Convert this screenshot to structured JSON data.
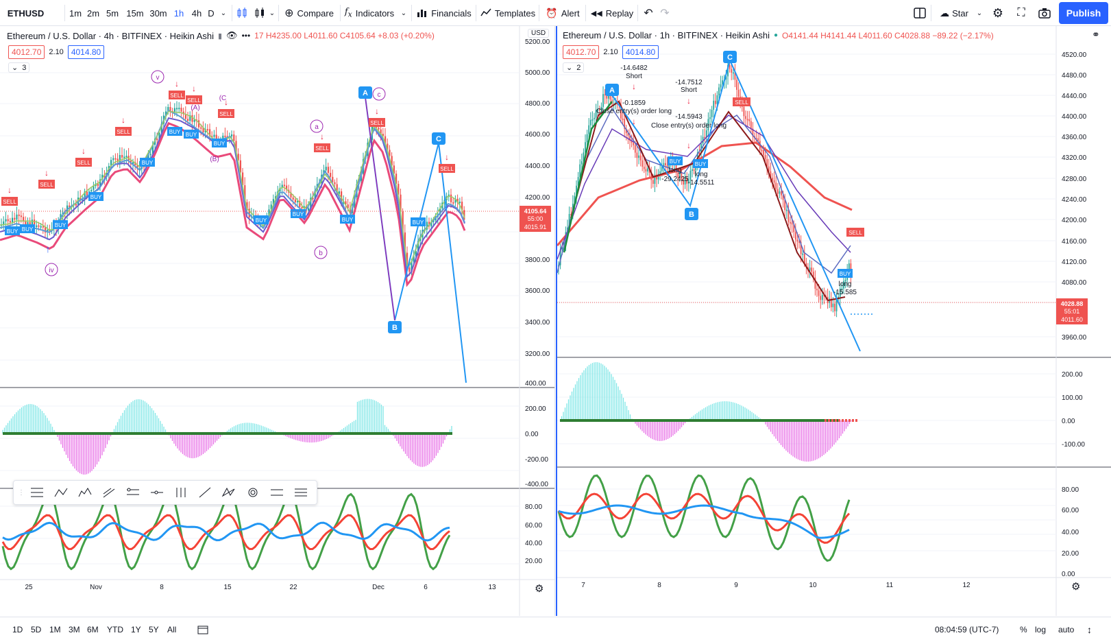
{
  "toolbar": {
    "symbol": "ETHUSD",
    "intervals": [
      "1m",
      "2m",
      "5m",
      "15m",
      "30m",
      "1h",
      "4h",
      "D"
    ],
    "active_interval": "1h",
    "compare": "Compare",
    "indicators": "Indicators",
    "financials": "Financials",
    "templates": "Templates",
    "alert": "Alert",
    "replay": "Replay",
    "star": "Star",
    "publish": "Publish"
  },
  "left": {
    "title": "Ethereum / U.S. Dollar · 4h · BITFINEX · Heikin Ashi",
    "ohlc": "17 H4235.00 L4011.60 C4105.64 +8.03 (+0.20%)",
    "bid": "4012.70",
    "spread": "2.10",
    "ask": "4014.80",
    "collapse": "3",
    "currency": "USD",
    "price_ticks": [
      "5200.00",
      "5000.00",
      "4800.00",
      "4600.00",
      "4400.00",
      "4200.00",
      "4000.00",
      "3800.00",
      "3600.00",
      "3400.00",
      "3200.00"
    ],
    "osc_ticks": [
      "400.00",
      "200.00",
      "0.00",
      "-200.00",
      "-400.00"
    ],
    "rsi_ticks": [
      "80.00",
      "60.00",
      "40.00",
      "20.00"
    ],
    "last_price": "4105.64",
    "countdown": "55:00",
    "last_low": "4015.91",
    "dates": [
      "25",
      "Nov",
      "8",
      "15",
      "22",
      "Dec",
      "6",
      "13"
    ],
    "wave_labels": [
      "v",
      "iv",
      "(C",
      "(A)",
      "(B)",
      "a",
      "b",
      "c"
    ],
    "pattern_points": [
      "A",
      "B",
      "C"
    ]
  },
  "right": {
    "title": "Ethereum / U.S. Dollar · 1h · BITFINEX · Heikin Ashi",
    "ohlc": "O4141.44 H4141.44 L4011.60 C4028.88 −89.22 (−2.17%)",
    "bid": "4012.70",
    "spread": "2.10",
    "ask": "4014.80",
    "collapse": "2",
    "price_ticks": [
      "4520.00",
      "4480.00",
      "4440.00",
      "4400.00",
      "4360.00",
      "4320.00",
      "4280.00",
      "4240.00",
      "4200.00",
      "4160.00",
      "4120.00",
      "4080.00",
      "4040.00",
      "3960.00"
    ],
    "osc_ticks": [
      "200.00",
      "100.00",
      "0.00",
      "-100.00"
    ],
    "rsi_ticks": [
      "80.00",
      "60.00",
      "40.00",
      "20.00",
      "0.00"
    ],
    "last_price": "4028.88",
    "countdown": "55:01",
    "last_low": "4011.60",
    "dates": [
      "7",
      "8",
      "9",
      "10",
      "11",
      "12"
    ],
    "annotations": [
      "-14.6482",
      "Short",
      "-0.1859",
      "Close entry(s) order long",
      "-14.7512",
      "Short",
      "-14.5943",
      "Close entry(s) order long",
      "long",
      "-29.2425",
      "long",
      "-14.5511",
      "long",
      "-15.585"
    ],
    "signals": [
      "SELL",
      "BUY"
    ],
    "pattern_points": [
      "A",
      "B",
      "C"
    ]
  },
  "signal_labels": {
    "buy": "BUY",
    "sell": "SELL"
  },
  "bottom": {
    "ranges": [
      "1D",
      "5D",
      "1M",
      "3M",
      "6M",
      "YTD",
      "1Y",
      "5Y",
      "All"
    ],
    "time": "08:04:59 (UTC-7)",
    "pct": "%",
    "log": "log",
    "auto": "auto"
  }
}
